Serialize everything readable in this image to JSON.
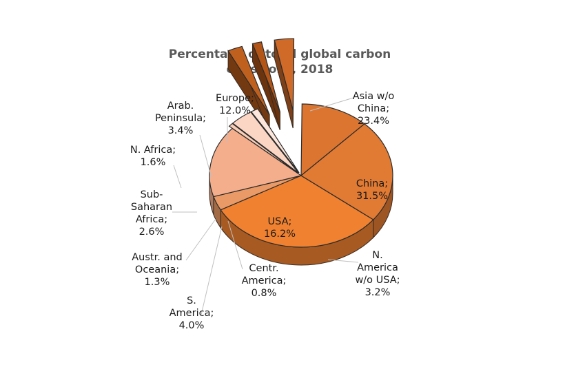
{
  "chart_data": {
    "type": "pie",
    "title": "Percentage of total global carbon emissions, 2018",
    "title_lines": [
      "Percentage of total global carbon",
      "emissions, 2018"
    ],
    "unit": "%",
    "style": "3d-exploded",
    "slices": [
      {
        "name": "China",
        "value": 31.5,
        "label_lines": [
          "China;",
          "31.5%"
        ],
        "color": "#EF8130"
      },
      {
        "name": "N. America w/o USA",
        "value": 3.2,
        "label_lines": [
          "N.",
          "America",
          "w/o USA;",
          "3.2%"
        ],
        "color": "#E99A66"
      },
      {
        "name": "USA",
        "value": 16.2,
        "label_lines": [
          "USA;",
          "16.2%"
        ],
        "color": "#F4AE8C"
      },
      {
        "name": "Centr. America",
        "value": 0.8,
        "label_lines": [
          "Centr.",
          "America;",
          "0.8%"
        ],
        "color": "#F9CDB6"
      },
      {
        "name": "S. America",
        "value": 4.0,
        "label_lines": [
          "S.",
          "America;",
          "4.0%"
        ],
        "color": "#FBD6C4"
      },
      {
        "name": "Austr. and Oceania",
        "value": 1.3,
        "label_lines": [
          "Austr. and",
          "Oceania;",
          "1.3%"
        ],
        "color": "#FDE7DC"
      },
      {
        "name": "Sub-Saharan Africa",
        "value": 2.6,
        "label_lines": [
          "Sub-",
          "Saharan",
          "Africa;",
          "2.6%"
        ],
        "color": "#C0601E"
      },
      {
        "name": "N. Africa",
        "value": 1.6,
        "label_lines": [
          "N. Africa;",
          "1.6%"
        ],
        "color": "#B35517"
      },
      {
        "name": "Arab. Peninsula",
        "value": 3.4,
        "label_lines": [
          "Arab.",
          "Peninsula;",
          "3.4%"
        ],
        "color": "#D06A28"
      },
      {
        "name": "Europe",
        "value": 12.0,
        "label_lines": [
          "Europe;",
          "12.0%"
        ],
        "color": "#DC7530"
      },
      {
        "name": "Asia w/o China",
        "value": 23.4,
        "label_lines": [
          "Asia w/o",
          "China;",
          "23.4%"
        ],
        "color": "#E17A33"
      }
    ]
  }
}
